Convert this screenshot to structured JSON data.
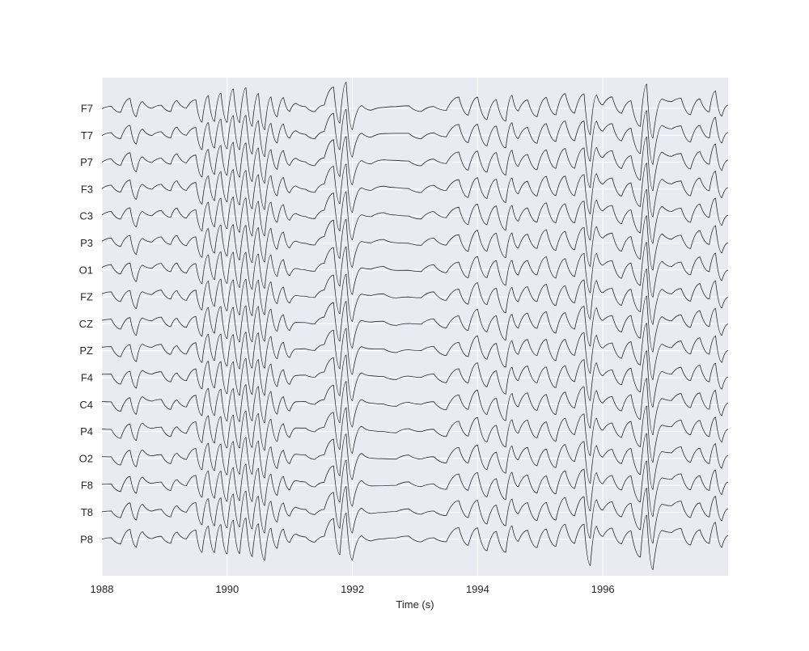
{
  "colors": {
    "plot_background": "#EAEAF2",
    "grid": "#FFFFFF",
    "trace": "#262626",
    "text": "#262626"
  },
  "chart_data": {
    "type": "line",
    "title": "",
    "xlabel": "Time (s)",
    "ylabel": "",
    "xlim": [
      1988,
      1998
    ],
    "xticks": [
      1988,
      1990,
      1992,
      1994,
      1996
    ],
    "grid": true,
    "legend": "none",
    "channels": [
      "F7",
      "T7",
      "P7",
      "F3",
      "C3",
      "P3",
      "O1",
      "FZ",
      "CZ",
      "PZ",
      "F4",
      "C4",
      "P4",
      "O2",
      "F8",
      "T8",
      "P8"
    ],
    "shared_waveform": {
      "x": [
        1988.0,
        1988.15,
        1988.3,
        1988.45,
        1988.55,
        1988.65,
        1988.8,
        1988.95,
        1989.1,
        1989.2,
        1989.35,
        1989.5,
        1989.6,
        1989.7,
        1989.8,
        1989.9,
        1990.0,
        1990.1,
        1990.2,
        1990.3,
        1990.4,
        1990.5,
        1990.6,
        1990.7,
        1990.8,
        1990.9,
        1991.0,
        1991.1,
        1991.25,
        1991.4,
        1991.55,
        1991.7,
        1991.8,
        1991.9,
        1992.0,
        1992.15,
        1992.3,
        1992.5,
        1992.7,
        1992.9,
        1993.1,
        1993.3,
        1993.5,
        1993.7,
        1993.85,
        1994.0,
        1994.15,
        1994.3,
        1994.45,
        1994.55,
        1994.65,
        1994.8,
        1994.95,
        1995.1,
        1995.25,
        1995.4,
        1995.55,
        1995.7,
        1995.8,
        1995.9,
        1996.0,
        1996.15,
        1996.3,
        1996.45,
        1996.6,
        1996.7,
        1996.8,
        1996.95,
        1997.1,
        1997.25,
        1997.4,
        1997.55,
        1997.7,
        1997.8,
        1997.9,
        1998.0
      ],
      "y": [
        0.1,
        0.2,
        -0.3,
        0.5,
        -0.6,
        0.4,
        0.1,
        0.3,
        -0.2,
        0.4,
        -0.1,
        0.5,
        -0.8,
        0.9,
        -0.7,
        1.0,
        -0.9,
        1.1,
        -1.0,
        1.2,
        -1.1,
        1.0,
        -1.2,
        0.8,
        -0.5,
        0.6,
        -0.3,
        0.2,
        0.1,
        -0.1,
        0.3,
        1.3,
        -1.0,
        1.5,
        -1.4,
        0.2,
        0.0,
        0.1,
        0.0,
        0.1,
        -0.1,
        0.2,
        -0.2,
        0.6,
        -0.4,
        0.8,
        -0.6,
        0.5,
        -0.9,
        0.7,
        -0.2,
        0.6,
        -0.4,
        0.7,
        -0.5,
        0.8,
        -0.3,
        1.0,
        -1.5,
        0.9,
        0.2,
        0.6,
        -0.4,
        0.5,
        -1.0,
        1.6,
        -1.8,
        0.5,
        0.3,
        0.6,
        -0.3,
        0.7,
        -0.2,
        1.0,
        -0.6,
        0.1
      ]
    }
  }
}
